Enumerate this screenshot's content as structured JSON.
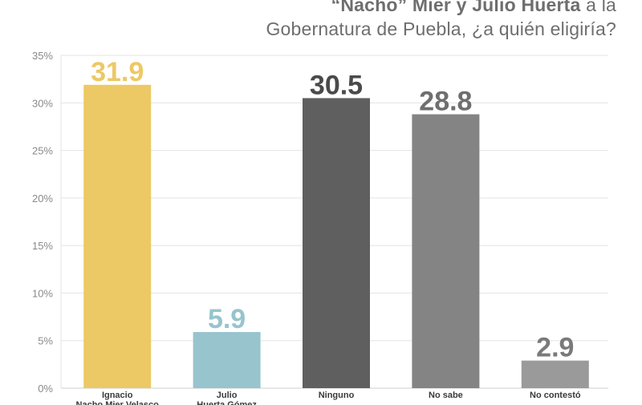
{
  "title": {
    "line1_bold_a": "“Nacho” Mier",
    "line1_bold_b": "y Julio Huerta",
    "line1_tail": "a la",
    "line2": "Gobernatura de Puebla, ¿a quién eligiría?"
  },
  "chart_data": {
    "type": "bar",
    "categories": [
      [
        "Ignacio",
        "Nacho Mier Velasco"
      ],
      [
        "Julio",
        "Huerta Gómez"
      ],
      [
        "Ninguno"
      ],
      [
        "No sabe"
      ],
      [
        "No contestó"
      ]
    ],
    "values": [
      31.9,
      5.9,
      30.5,
      28.8,
      2.9
    ],
    "value_labels": [
      "31.9",
      "5.9",
      "30.5",
      "28.8",
      "2.9"
    ],
    "colors": [
      "#ecc965",
      "#97c4cd",
      "#5f5f5f",
      "#848484",
      "#9a9a9a"
    ],
    "label_colors": [
      "#ecc965",
      "#97c4cd",
      "#4a4a4a",
      "#6e6e6e",
      "#7a7a7a"
    ],
    "ylim": [
      0,
      35
    ],
    "yticks": [
      "0%",
      "5%",
      "10%",
      "15%",
      "20%",
      "25%",
      "30%",
      "35%"
    ],
    "grid": true
  }
}
